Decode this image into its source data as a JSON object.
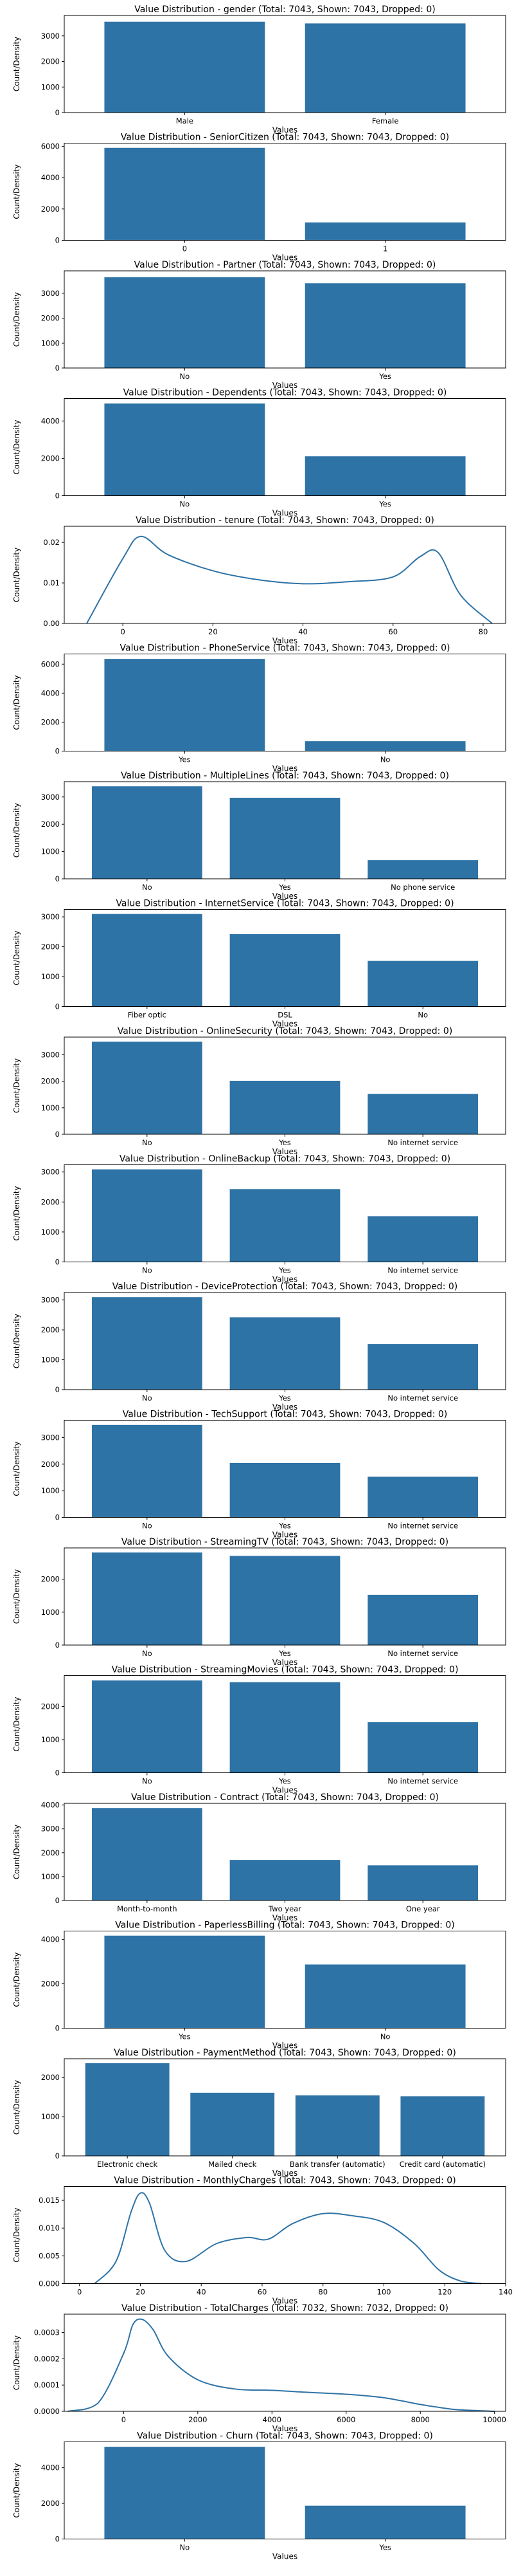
{
  "colors": {
    "bar": "#2e73a6",
    "line": "#2e73a6",
    "axis": "#000000"
  },
  "common": {
    "xlabel": "Values",
    "ylabel": "Count/Density"
  },
  "chart_data": [
    {
      "type": "bar",
      "title": "Value Distribution - gender (Total: 7043, Shown: 7043, Dropped: 0)",
      "categories": [
        "Male",
        "Female"
      ],
      "values": [
        3555,
        3488
      ],
      "ylim": [
        0,
        3800
      ],
      "yticks": [
        0,
        1000,
        2000,
        3000
      ]
    },
    {
      "type": "bar",
      "title": "Value Distribution - SeniorCitizen (Total: 7043, Shown: 7043, Dropped: 0)",
      "categories": [
        "0",
        "1"
      ],
      "values": [
        5901,
        1142
      ],
      "ylim": [
        0,
        6200
      ],
      "yticks": [
        0,
        2000,
        4000,
        6000
      ]
    },
    {
      "type": "bar",
      "title": "Value Distribution - Partner (Total: 7043, Shown: 7043, Dropped: 0)",
      "categories": [
        "No",
        "Yes"
      ],
      "values": [
        3641,
        3402
      ],
      "ylim": [
        0,
        3900
      ],
      "yticks": [
        0,
        1000,
        2000,
        3000
      ]
    },
    {
      "type": "bar",
      "title": "Value Distribution - Dependents (Total: 7043, Shown: 7043, Dropped: 0)",
      "categories": [
        "No",
        "Yes"
      ],
      "values": [
        4933,
        2110
      ],
      "ylim": [
        0,
        5200
      ],
      "yticks": [
        0,
        2000,
        4000
      ]
    },
    {
      "type": "line",
      "title": "Value Distribution - tenure (Total: 7043, Shown: 7043, Dropped: 0)",
      "x": [
        -8,
        0,
        4,
        10,
        20,
        30,
        40,
        50,
        60,
        66,
        70,
        75,
        82
      ],
      "y": [
        0.0,
        0.016,
        0.0215,
        0.017,
        0.013,
        0.0108,
        0.0098,
        0.0103,
        0.0115,
        0.0165,
        0.0175,
        0.007,
        0.0
      ],
      "xlim": [
        -13,
        85
      ],
      "ylim": [
        0,
        0.024
      ],
      "xticks": [
        0,
        20,
        40,
        60,
        80
      ],
      "yticks": [
        0.0,
        0.01,
        0.02
      ],
      "xticklabels": [
        "0",
        "20",
        "40",
        "60",
        "80"
      ],
      "yticklabels": [
        "0.00",
        "0.01",
        "0.02"
      ]
    },
    {
      "type": "bar",
      "title": "Value Distribution - PhoneService (Total: 7043, Shown: 7043, Dropped: 0)",
      "categories": [
        "Yes",
        "No"
      ],
      "values": [
        6361,
        682
      ],
      "ylim": [
        0,
        6700
      ],
      "yticks": [
        0,
        2000,
        4000,
        6000
      ]
    },
    {
      "type": "bar",
      "title": "Value Distribution - MultipleLines (Total: 7043, Shown: 7043, Dropped: 0)",
      "categories": [
        "No",
        "Yes",
        "No phone service"
      ],
      "values": [
        3390,
        2971,
        682
      ],
      "ylim": [
        0,
        3560
      ],
      "yticks": [
        0,
        1000,
        2000,
        3000
      ]
    },
    {
      "type": "bar",
      "title": "Value Distribution - InternetService (Total: 7043, Shown: 7043, Dropped: 0)",
      "categories": [
        "Fiber optic",
        "DSL",
        "No"
      ],
      "values": [
        3096,
        2421,
        1526
      ],
      "ylim": [
        0,
        3250
      ],
      "yticks": [
        0,
        1000,
        2000,
        3000
      ]
    },
    {
      "type": "bar",
      "title": "Value Distribution - OnlineSecurity (Total: 7043, Shown: 7043, Dropped: 0)",
      "categories": [
        "No",
        "Yes",
        "No internet service"
      ],
      "values": [
        3498,
        2019,
        1526
      ],
      "ylim": [
        0,
        3670
      ],
      "yticks": [
        0,
        1000,
        2000,
        3000
      ]
    },
    {
      "type": "bar",
      "title": "Value Distribution - OnlineBackup (Total: 7043, Shown: 7043, Dropped: 0)",
      "categories": [
        "No",
        "Yes",
        "No internet service"
      ],
      "values": [
        3088,
        2429,
        1526
      ],
      "ylim": [
        0,
        3240
      ],
      "yticks": [
        0,
        1000,
        2000,
        3000
      ]
    },
    {
      "type": "bar",
      "title": "Value Distribution - DeviceProtection (Total: 7043, Shown: 7043, Dropped: 0)",
      "categories": [
        "No",
        "Yes",
        "No internet service"
      ],
      "values": [
        3095,
        2422,
        1526
      ],
      "ylim": [
        0,
        3250
      ],
      "yticks": [
        0,
        1000,
        2000,
        3000
      ]
    },
    {
      "type": "bar",
      "title": "Value Distribution - TechSupport (Total: 7043, Shown: 7043, Dropped: 0)",
      "categories": [
        "No",
        "Yes",
        "No internet service"
      ],
      "values": [
        3473,
        2044,
        1526
      ],
      "ylim": [
        0,
        3650
      ],
      "yticks": [
        0,
        1000,
        2000,
        3000
      ]
    },
    {
      "type": "bar",
      "title": "Value Distribution - StreamingTV (Total: 7043, Shown: 7043, Dropped: 0)",
      "categories": [
        "No",
        "Yes",
        "No internet service"
      ],
      "values": [
        2810,
        2707,
        1526
      ],
      "ylim": [
        0,
        2950
      ],
      "yticks": [
        0,
        1000,
        2000
      ]
    },
    {
      "type": "bar",
      "title": "Value Distribution - StreamingMovies (Total: 7043, Shown: 7043, Dropped: 0)",
      "categories": [
        "No",
        "Yes",
        "No internet service"
      ],
      "values": [
        2785,
        2732,
        1526
      ],
      "ylim": [
        0,
        2930
      ],
      "yticks": [
        0,
        1000,
        2000
      ]
    },
    {
      "type": "bar",
      "title": "Value Distribution - Contract (Total: 7043, Shown: 7043, Dropped: 0)",
      "categories": [
        "Month-to-month",
        "Two year",
        "One year"
      ],
      "values": [
        3875,
        1695,
        1473
      ],
      "ylim": [
        0,
        4070
      ],
      "yticks": [
        0,
        1000,
        2000,
        3000,
        4000
      ]
    },
    {
      "type": "bar",
      "title": "Value Distribution - PaperlessBilling (Total: 7043, Shown: 7043, Dropped: 0)",
      "categories": [
        "Yes",
        "No"
      ],
      "values": [
        4171,
        2872
      ],
      "ylim": [
        0,
        4380
      ],
      "yticks": [
        0,
        2000,
        4000
      ]
    },
    {
      "type": "bar",
      "title": "Value Distribution - PaymentMethod (Total: 7043, Shown: 7043, Dropped: 0)",
      "categories": [
        "Electronic check",
        "Mailed check",
        "Bank transfer (automatic)",
        "Credit card (automatic)"
      ],
      "values": [
        2365,
        1612,
        1544,
        1522
      ],
      "ylim": [
        0,
        2480
      ],
      "yticks": [
        0,
        1000,
        2000
      ]
    },
    {
      "type": "line",
      "title": "Value Distribution - MonthlyCharges (Total: 7043, Shown: 7043, Dropped: 0)",
      "x": [
        5,
        12,
        17,
        20,
        23,
        28,
        35,
        45,
        55,
        62,
        70,
        80,
        90,
        100,
        110,
        118,
        125,
        132
      ],
      "y": [
        0.0,
        0.004,
        0.013,
        0.0163,
        0.0145,
        0.006,
        0.004,
        0.0072,
        0.0083,
        0.008,
        0.0108,
        0.0126,
        0.0122,
        0.011,
        0.0072,
        0.0025,
        0.0005,
        0.0
      ],
      "xlim": [
        -5,
        140
      ],
      "ylim": [
        0,
        0.0175
      ],
      "xticks": [
        0,
        20,
        40,
        60,
        80,
        100,
        120,
        140
      ],
      "yticks": [
        0.0,
        0.005,
        0.01,
        0.015
      ],
      "xticklabels": [
        "0",
        "20",
        "40",
        "60",
        "80",
        "100",
        "120",
        "140"
      ],
      "yticklabels": [
        "0.000",
        "0.005",
        "0.010",
        "0.015"
      ]
    },
    {
      "type": "line",
      "title": "Value Distribution - TotalCharges (Total: 7032, Shown: 7032, Dropped: 0)",
      "x": [
        -1500,
        -700,
        0,
        250,
        500,
        800,
        1200,
        2000,
        3000,
        4000,
        5000,
        6000,
        7000,
        8000,
        8500,
        9000,
        10000
      ],
      "y": [
        0.0,
        3e-05,
        0.00022,
        0.00033,
        0.00035,
        0.00031,
        0.00021,
        0.00012,
        8.5e-05,
        8e-05,
        7.2e-05,
        6.5e-05,
        5.2e-05,
        2.6e-05,
        1.5e-05,
        6e-06,
        0.0
      ],
      "xlim": [
        -1600,
        10300
      ],
      "ylim": [
        0,
        0.00037
      ],
      "xticks": [
        0,
        2000,
        4000,
        6000,
        8000,
        10000
      ],
      "yticks": [
        0.0,
        0.0001,
        0.0002,
        0.0003
      ],
      "xticklabels": [
        "0",
        "2000",
        "4000",
        "6000",
        "8000",
        "10000"
      ],
      "yticklabels": [
        "0.0000",
        "0.0001",
        "0.0002",
        "0.0003"
      ]
    },
    {
      "type": "bar",
      "title": "Value Distribution - Churn (Total: 7043, Shown: 7043, Dropped: 0)",
      "categories": [
        "No",
        "Yes"
      ],
      "values": [
        5174,
        1869
      ],
      "ylim": [
        0,
        5450
      ],
      "yticks": [
        0,
        2000,
        4000
      ]
    }
  ]
}
